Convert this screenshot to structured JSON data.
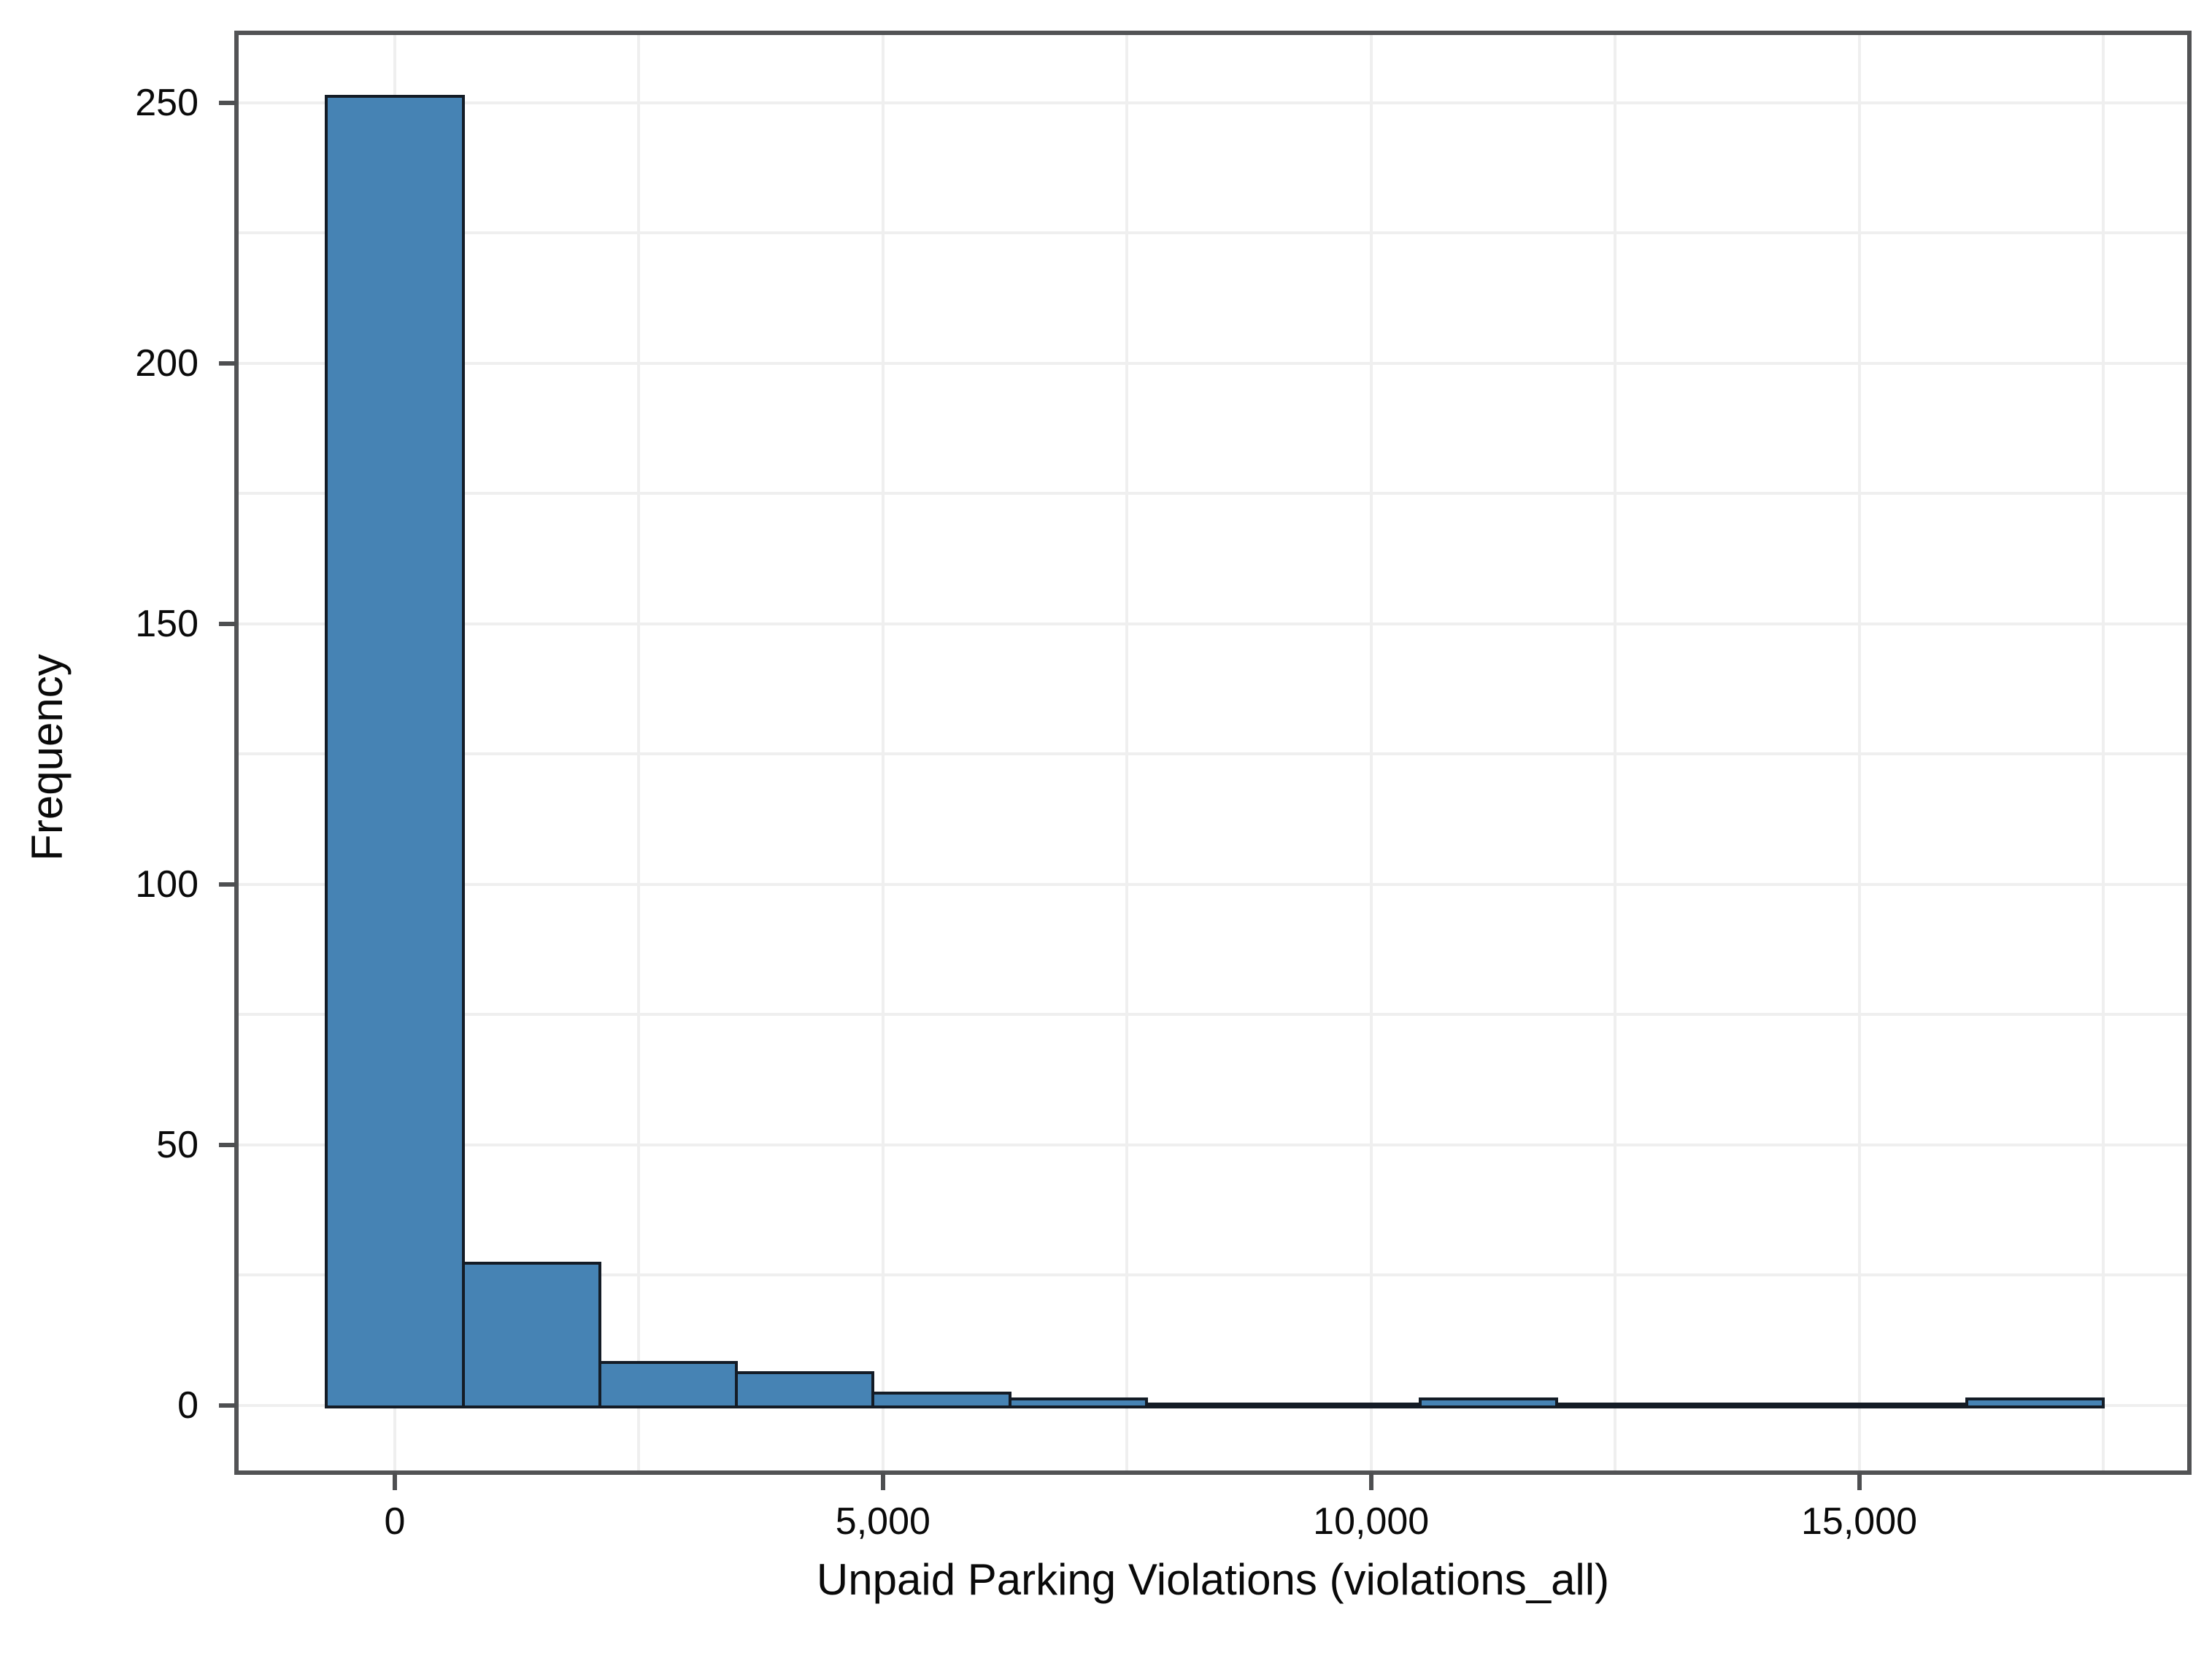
{
  "figure": {
    "background_color": "#ffffff",
    "frame_color": "#525355",
    "grid_color": "#efefef",
    "tick_color": "#4e4f51",
    "text_color": "#0a0a0a",
    "bar_fill_color": "#4683b4",
    "bar_stroke_color": "#141c26"
  },
  "chart_data": {
    "type": "bar",
    "subtype": "histogram",
    "title": "",
    "xlabel": "Unpaid Parking Violations (violations_all)",
    "ylabel": "Frequency",
    "bin_width": 1400,
    "bin_centers": [
      0,
      1400,
      2800,
      4200,
      5600,
      7000,
      8400,
      9800,
      11200,
      12600,
      14000,
      15400,
      16800
    ],
    "values": [
      251,
      27,
      8,
      6,
      2,
      1,
      0,
      0,
      1,
      0,
      0,
      0,
      1
    ],
    "xlim": [
      -1600,
      18360
    ],
    "ylim": [
      -12.5,
      263
    ],
    "x_ticks": [
      {
        "value": 0,
        "label": "0"
      },
      {
        "value": 5000,
        "label": "5,000"
      },
      {
        "value": 10000,
        "label": "10,000"
      },
      {
        "value": 15000,
        "label": "15,000"
      }
    ],
    "y_ticks": [
      {
        "value": 0,
        "label": "0"
      },
      {
        "value": 50,
        "label": "50"
      },
      {
        "value": 100,
        "label": "100"
      },
      {
        "value": 150,
        "label": "150"
      },
      {
        "value": 200,
        "label": "200"
      },
      {
        "value": 250,
        "label": "250"
      }
    ],
    "x_minor_grid_step": 2500,
    "x_minor_grid_max": 17500,
    "y_minor_grid_step": 25,
    "y_minor_grid_max": 250,
    "grid": "on",
    "legend": "none"
  }
}
